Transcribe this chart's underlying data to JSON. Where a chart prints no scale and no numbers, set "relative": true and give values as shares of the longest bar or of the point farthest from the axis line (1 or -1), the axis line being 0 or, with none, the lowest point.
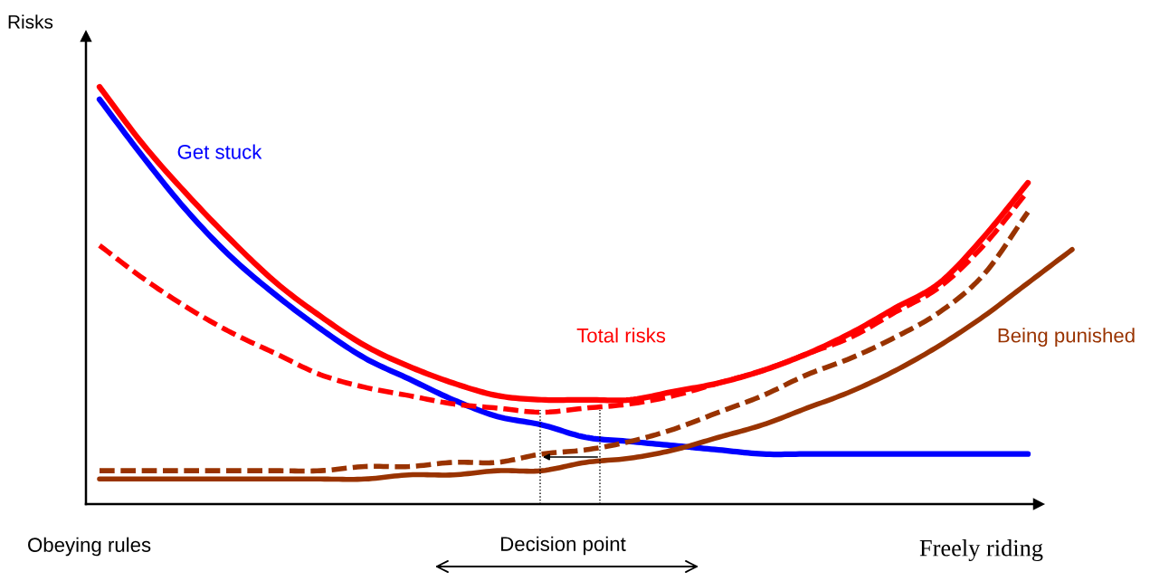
{
  "chart_data": {
    "type": "line",
    "relative": true,
    "ylabel": "Risks",
    "categories": [
      null,
      null,
      null,
      null,
      null,
      null,
      null,
      null,
      null,
      null,
      null,
      null,
      null,
      null,
      null,
      null,
      null,
      null,
      null,
      null,
      null,
      null,
      null
    ],
    "series": [
      {
        "name": "Get stuck",
        "color": "#0000ff",
        "line_style": "solid",
        "values": [
          0.97,
          0.83,
          0.7,
          0.59,
          0.5,
          0.42,
          0.35,
          0.3,
          0.25,
          0.21,
          0.19,
          0.16,
          0.15,
          0.14,
          0.13,
          0.12,
          0.12,
          0.12,
          0.12,
          0.12,
          0.12,
          0.12,
          null
        ]
      },
      {
        "name": "Total risks",
        "color": "#ff0000",
        "line_style": "solid",
        "values": [
          1.0,
          0.86,
          0.74,
          0.63,
          0.53,
          0.45,
          0.38,
          0.33,
          0.29,
          0.26,
          0.25,
          0.25,
          0.25,
          0.27,
          0.29,
          0.32,
          0.36,
          0.41,
          0.47,
          0.53,
          0.64,
          0.77,
          null
        ]
      },
      {
        "color": "#ff0000",
        "line_style": "dashed",
        "values": [
          0.62,
          0.54,
          0.47,
          0.41,
          0.36,
          0.31,
          0.28,
          0.26,
          0.24,
          0.23,
          0.22,
          0.23,
          0.24,
          0.26,
          0.29,
          0.32,
          0.36,
          0.4,
          0.46,
          0.52,
          0.62,
          0.75,
          null
        ]
      },
      {
        "color": "#993300",
        "line_style": "dashed",
        "values": [
          0.08,
          0.08,
          0.08,
          0.08,
          0.08,
          0.08,
          0.09,
          0.09,
          0.1,
          0.1,
          0.12,
          0.13,
          0.15,
          0.18,
          0.22,
          0.26,
          0.31,
          0.35,
          0.4,
          0.46,
          0.55,
          0.7,
          null
        ]
      },
      {
        "name": "Being punished",
        "color": "#993300",
        "line_style": "solid",
        "values": [
          0.06,
          0.06,
          0.06,
          0.06,
          0.06,
          0.06,
          0.06,
          0.07,
          0.07,
          0.08,
          0.08,
          0.1,
          0.11,
          0.13,
          0.16,
          0.19,
          0.23,
          0.27,
          0.32,
          0.38,
          0.45,
          0.53,
          0.61
        ]
      }
    ],
    "annotations": [
      "Obeying rules",
      "Decision point",
      "Freely riding"
    ]
  }
}
